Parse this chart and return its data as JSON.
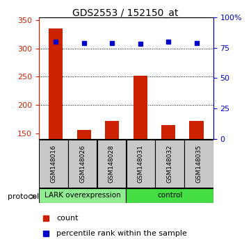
{
  "title": "GDS2553 / 152150_at",
  "samples": [
    "GSM148016",
    "GSM148026",
    "GSM148028",
    "GSM148031",
    "GSM148032",
    "GSM148035"
  ],
  "counts": [
    335,
    156,
    172,
    252,
    165,
    172
  ],
  "percentile_ranks": [
    80,
    79,
    79,
    78,
    80,
    79
  ],
  "ylim_left": [
    140,
    355
  ],
  "ylim_right": [
    0,
    100
  ],
  "yticks_left": [
    150,
    200,
    250,
    300,
    350
  ],
  "yticks_right": [
    0,
    25,
    50,
    75,
    100
  ],
  "bar_color": "#CC2200",
  "dot_color": "#0000CC",
  "group_labels": [
    "LARK overexpression",
    "control"
  ],
  "group_split": 3,
  "lark_color": "#90EE90",
  "ctrl_color": "#44DD44",
  "label_count": "count",
  "label_percentile": "percentile rank within the sample",
  "protocol_label": "protocol",
  "grid_dotted_at": [
    300,
    250,
    200
  ],
  "bar_width": 0.5
}
